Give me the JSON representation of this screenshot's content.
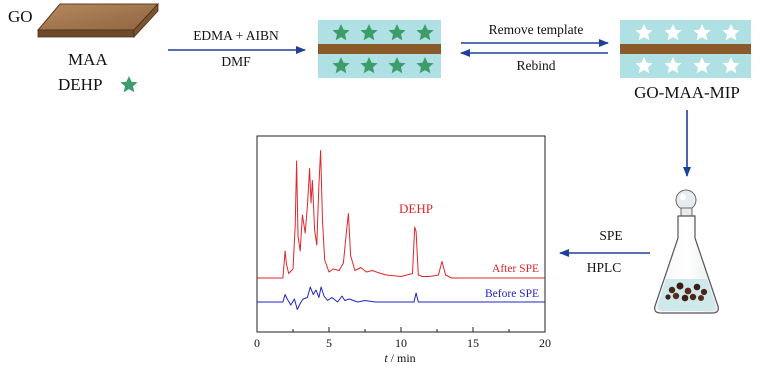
{
  "labels": {
    "go": "GO",
    "maa": "MAA",
    "dehp_reagent": "DEHP",
    "step1_top": "EDMA + AIBN",
    "step1_bottom": "DMF",
    "step2_top": "Remove template",
    "step2_bottom": "Rebind",
    "product": "GO-MAA-MIP",
    "spe": "SPE",
    "hplc": "HPLC"
  },
  "colors": {
    "go_sheet": "#a0764c",
    "mip_layer": "#aee0e4",
    "mip_core": "#8b5a2b",
    "template_star": "#3c9c6a",
    "cavity_star": "#ffffff",
    "arrow": "#1f3f9a",
    "after_spe": "#e0262b",
    "before_spe": "#2323c8",
    "text": "#111111"
  },
  "chart_data": {
    "type": "line",
    "xlabel_italic": "t",
    "xlabel_rest": " / min",
    "xlim": [
      0,
      20
    ],
    "xticks": [
      0,
      5,
      10,
      15,
      20
    ],
    "tick_labels": [
      "0",
      "5",
      "10",
      "15",
      "20"
    ],
    "annotation": "DEHP",
    "annotation_x": 11.1,
    "series": [
      {
        "name": "After SPE",
        "color": "#e0262b",
        "baseline": 0,
        "x": [
          0.0,
          1.8,
          1.95,
          2.05,
          2.2,
          2.5,
          2.65,
          2.75,
          2.85,
          3.0,
          3.15,
          3.35,
          3.5,
          3.65,
          3.75,
          3.85,
          4.0,
          4.15,
          4.3,
          4.42,
          4.55,
          4.7,
          5.0,
          5.3,
          5.7,
          6.0,
          6.2,
          6.35,
          6.5,
          6.8,
          7.2,
          7.6,
          8.0,
          8.6,
          9.0,
          10.0,
          10.8,
          10.95,
          11.05,
          11.2,
          11.5,
          12.0,
          12.6,
          12.85,
          13.1,
          13.5,
          20.0
        ],
        "y": [
          0.0,
          0.0,
          0.18,
          0.09,
          0.03,
          0.06,
          0.35,
          0.78,
          0.28,
          0.18,
          0.42,
          0.3,
          0.48,
          0.73,
          0.5,
          0.65,
          0.32,
          0.22,
          0.62,
          0.85,
          0.38,
          0.12,
          0.04,
          0.06,
          0.05,
          0.1,
          0.3,
          0.43,
          0.15,
          0.05,
          0.07,
          0.04,
          0.05,
          0.03,
          0.02,
          0.01,
          0.03,
          0.34,
          0.31,
          0.02,
          0.01,
          0.01,
          0.02,
          0.11,
          0.02,
          0.0,
          0.0
        ]
      },
      {
        "name": "Before SPE",
        "color": "#2323c8",
        "baseline": -0.2,
        "x": [
          0.0,
          1.8,
          1.95,
          2.1,
          2.35,
          2.6,
          2.8,
          3.0,
          3.2,
          3.5,
          3.7,
          3.9,
          4.1,
          4.3,
          4.45,
          4.65,
          4.9,
          5.2,
          5.6,
          5.9,
          6.1,
          6.4,
          7.0,
          7.5,
          8.2,
          9.0,
          10.0,
          10.9,
          11.05,
          11.2,
          11.5,
          20.0
        ],
        "y": [
          0.0,
          0.0,
          0.05,
          0.02,
          -0.02,
          0.02,
          -0.05,
          -0.01,
          0.02,
          0.03,
          0.1,
          0.05,
          0.08,
          0.03,
          0.1,
          0.04,
          0.01,
          0.03,
          0.0,
          0.04,
          0.01,
          0.02,
          0.0,
          0.01,
          0.0,
          0.0,
          0.0,
          0.0,
          0.06,
          0.0,
          0.0,
          0.0
        ]
      }
    ]
  }
}
